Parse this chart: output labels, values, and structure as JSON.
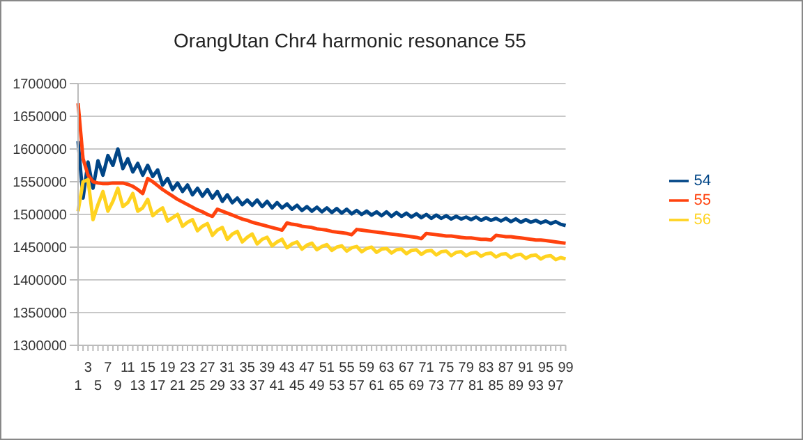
{
  "chart_data": {
    "type": "line",
    "title": "OrangUtan Chr4 harmonic resonance 55",
    "categories": [
      "1",
      null,
      "3",
      null,
      "5",
      null,
      "7",
      null,
      "9",
      null,
      "11",
      null,
      "13",
      null,
      "15",
      null,
      "17",
      null,
      "19",
      null,
      "21",
      null,
      "23",
      null,
      "25",
      null,
      "27",
      null,
      "29",
      null,
      "31",
      null,
      "33",
      null,
      "35",
      null,
      "37",
      null,
      "39",
      null,
      "41",
      null,
      "43",
      null,
      "45",
      null,
      "47",
      null,
      "49",
      null,
      "51",
      null,
      "53",
      null,
      "55",
      null,
      "57",
      null,
      "59",
      null,
      "61",
      null,
      "63",
      null,
      "65",
      null,
      "67",
      null,
      "69",
      null,
      "71",
      null,
      "73",
      null,
      "75",
      null,
      "77",
      null,
      "79",
      null,
      "81",
      null,
      "83",
      null,
      "85",
      null,
      "87",
      null,
      "89",
      null,
      "91",
      null,
      "93",
      null,
      "95",
      null,
      "97",
      null,
      "99"
    ],
    "series": [
      {
        "name": "54",
        "color": "#004586",
        "values": [
          1612000,
          1525000,
          1580000,
          1540000,
          1582000,
          1560000,
          1590000,
          1575000,
          1600000,
          1570000,
          1585000,
          1565000,
          1578000,
          1560000,
          1575000,
          1558000,
          1568000,
          1545000,
          1555000,
          1538000,
          1548000,
          1535000,
          1545000,
          1530000,
          1540000,
          1528000,
          1538000,
          1525000,
          1535000,
          1520000,
          1530000,
          1518000,
          1525000,
          1515000,
          1522000,
          1514000,
          1522000,
          1512000,
          1520000,
          1510000,
          1518000,
          1510000,
          1516000,
          1508000,
          1514000,
          1506000,
          1512000,
          1505000,
          1511000,
          1504000,
          1510000,
          1503000,
          1509000,
          1502000,
          1508000,
          1501000,
          1506000,
          1500000,
          1505000,
          1499000,
          1504000,
          1498000,
          1504000,
          1497000,
          1503000,
          1497000,
          1502000,
          1496000,
          1501000,
          1495000,
          1500000,
          1494000,
          1499000,
          1494000,
          1498000,
          1493000,
          1497000,
          1493000,
          1496000,
          1492000,
          1496000,
          1491000,
          1495000,
          1491000,
          1494000,
          1490000,
          1494000,
          1489000,
          1493000,
          1488000,
          1492000,
          1488000,
          1491000,
          1487000,
          1490000,
          1486000,
          1489000,
          1485000,
          1483000
        ]
      },
      {
        "name": "55",
        "color": "#ff420e",
        "values": [
          1670000,
          1585000,
          1560000,
          1550000,
          1548000,
          1547000,
          1547000,
          1548000,
          1548000,
          1548000,
          1546000,
          1543000,
          1538000,
          1532000,
          1555000,
          1550000,
          1544000,
          1538000,
          1533000,
          1528000,
          1523000,
          1519000,
          1515000,
          1511000,
          1507000,
          1504000,
          1500000,
          1497000,
          1508000,
          1505000,
          1502000,
          1499000,
          1496000,
          1493000,
          1491000,
          1488000,
          1486000,
          1484000,
          1482000,
          1480000,
          1478000,
          1476000,
          1487000,
          1485000,
          1484000,
          1482000,
          1481000,
          1480000,
          1478000,
          1477000,
          1476000,
          1474000,
          1473000,
          1472000,
          1471000,
          1469000,
          1477000,
          1476000,
          1475000,
          1474000,
          1473000,
          1472000,
          1471000,
          1470000,
          1469000,
          1468000,
          1467000,
          1466000,
          1465000,
          1463000,
          1471000,
          1470000,
          1469000,
          1468000,
          1467000,
          1467000,
          1466000,
          1465000,
          1464000,
          1464000,
          1463000,
          1462000,
          1462000,
          1461000,
          1468000,
          1467000,
          1466000,
          1466000,
          1465000,
          1464000,
          1463000,
          1462000,
          1461000,
          1461000,
          1460000,
          1459000,
          1458000,
          1457000,
          1456000
        ]
      },
      {
        "name": "56",
        "color": "#ffd320",
        "values": [
          1505000,
          1550000,
          1553000,
          1492000,
          1515000,
          1535000,
          1505000,
          1520000,
          1540000,
          1512000,
          1518000,
          1532000,
          1505000,
          1510000,
          1523000,
          1498000,
          1505000,
          1510000,
          1490000,
          1495000,
          1500000,
          1482000,
          1488000,
          1492000,
          1475000,
          1482000,
          1486000,
          1468000,
          1476000,
          1480000,
          1462000,
          1470000,
          1474000,
          1458000,
          1465000,
          1470000,
          1455000,
          1462000,
          1465000,
          1452000,
          1458000,
          1462000,
          1449000,
          1455000,
          1458000,
          1447000,
          1453000,
          1456000,
          1446000,
          1451000,
          1454000,
          1445000,
          1450000,
          1452000,
          1444000,
          1449000,
          1451000,
          1443000,
          1448000,
          1450000,
          1442000,
          1447000,
          1448000,
          1441000,
          1446000,
          1447000,
          1440000,
          1445000,
          1446000,
          1439000,
          1444000,
          1445000,
          1438000,
          1443000,
          1444000,
          1437000,
          1442000,
          1443000,
          1437000,
          1441000,
          1442000,
          1436000,
          1440000,
          1441000,
          1435000,
          1439000,
          1440000,
          1434000,
          1438000,
          1439000,
          1433000,
          1437000,
          1438000,
          1432000,
          1436000,
          1437000,
          1431000,
          1434000,
          1432000
        ]
      }
    ],
    "ylim": [
      1300000,
      1700000
    ],
    "yticks": [
      1300000,
      1350000,
      1400000,
      1450000,
      1500000,
      1550000,
      1600000,
      1650000,
      1700000
    ],
    "grid": "y",
    "legend": "right",
    "marker": "none",
    "line_style": "solid"
  }
}
